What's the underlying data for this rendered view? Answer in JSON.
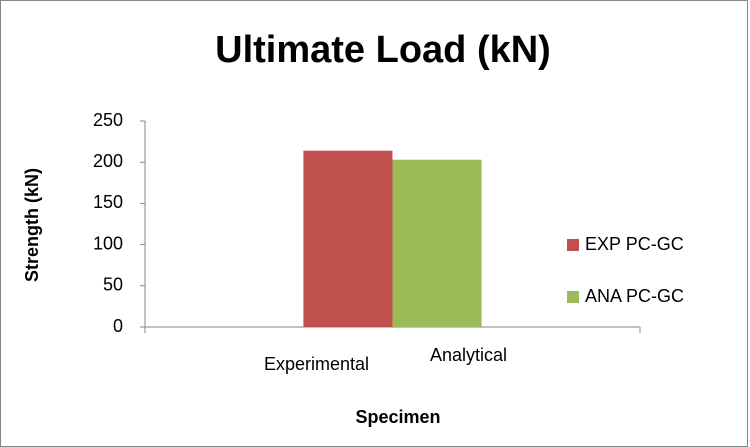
{
  "chart_data": {
    "type": "bar",
    "title": "Ultimate Load (kN)",
    "y_label": "Strength (kN)",
    "x_label": "Specimen",
    "categories": [
      [
        "Experimental",
        "Analytical"
      ]
    ],
    "series": [
      {
        "name": "EXP PC-GC",
        "color": "#c0504d",
        "values": [
          214
        ]
      },
      {
        "name": "ANA PC-GC",
        "color": "#9bbb59",
        "values": [
          203
        ]
      }
    ],
    "ylim": [
      0,
      250
    ],
    "yticks": [
      0,
      50,
      100,
      150,
      200,
      250
    ],
    "grid": false,
    "legend": "right"
  }
}
